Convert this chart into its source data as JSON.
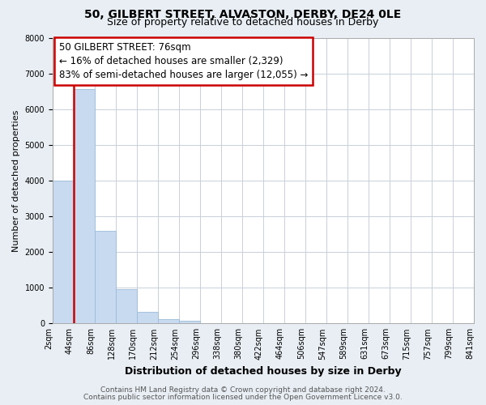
{
  "title": "50, GILBERT STREET, ALVASTON, DERBY, DE24 0LE",
  "subtitle": "Size of property relative to detached houses in Derby",
  "xlabel": "Distribution of detached houses by size in Derby",
  "ylabel": "Number of detached properties",
  "bin_labels": [
    "2sqm",
    "44sqm",
    "86sqm",
    "128sqm",
    "170sqm",
    "212sqm",
    "254sqm",
    "296sqm",
    "338sqm",
    "380sqm",
    "422sqm",
    "464sqm",
    "506sqm",
    "547sqm",
    "589sqm",
    "631sqm",
    "673sqm",
    "715sqm",
    "757sqm",
    "799sqm",
    "841sqm"
  ],
  "bar_values": [
    4000,
    6550,
    2600,
    970,
    330,
    130,
    80,
    0,
    0,
    0,
    0,
    0,
    0,
    0,
    0,
    0,
    0,
    0,
    0,
    0
  ],
  "bar_color": "#c8daf0",
  "bar_edge_color": "#9bbcd8",
  "vline_color": "#cc0000",
  "vline_x": 1.5,
  "annotation_text_line1": "50 GILBERT STREET: 76sqm",
  "annotation_text_line2": "← 16% of detached houses are smaller (2,329)",
  "annotation_text_line3": "83% of semi-detached houses are larger (12,055) →",
  "ylim": [
    0,
    8000
  ],
  "ytick_step": 1000,
  "footer_line1": "Contains HM Land Registry data © Crown copyright and database right 2024.",
  "footer_line2": "Contains public sector information licensed under the Open Government Licence v3.0.",
  "bg_color": "#e8eef4",
  "plot_bg_color": "#ffffff",
  "grid_color": "#c8d0d8",
  "title_fontsize": 10,
  "subtitle_fontsize": 9,
  "xlabel_fontsize": 9,
  "ylabel_fontsize": 8,
  "tick_fontsize": 7,
  "annotation_fontsize": 8.5,
  "footer_fontsize": 6.5
}
